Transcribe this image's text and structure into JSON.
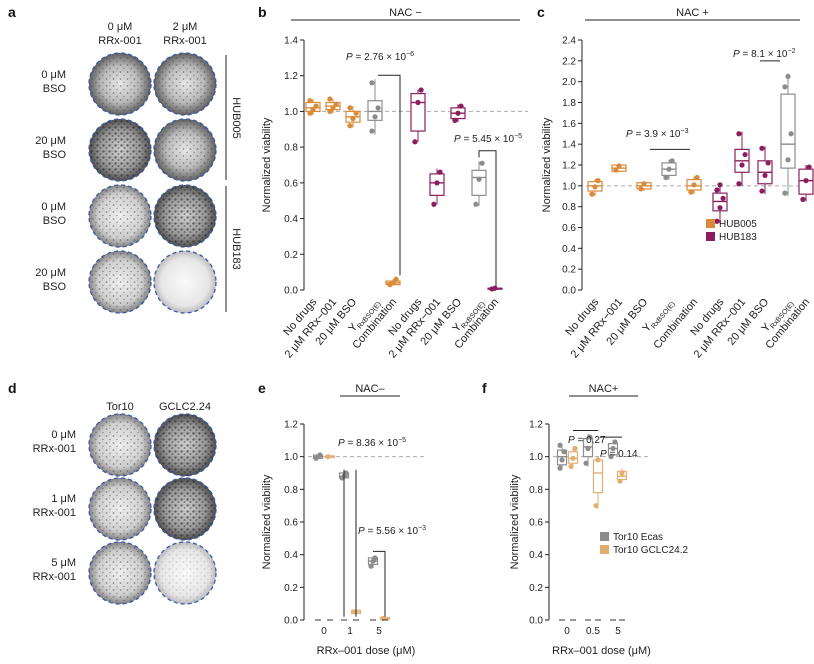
{
  "colors": {
    "hub005": "#d98a3a",
    "hub183": "#8b1e5e",
    "grey": "#8c8c8c",
    "tan": "#e3b07a",
    "tor10ecas": "#8c8c8c",
    "tor10gclc": "#e3ad72"
  },
  "panel_labels": {
    "a": "a",
    "b": "b",
    "c": "c",
    "d": "d",
    "e": "e",
    "f": "f"
  },
  "panel_a": {
    "col_headers": [
      {
        "line1": "0 μM",
        "line2": "RRx-001"
      },
      {
        "line1": "2 μM",
        "line2": "RRx-001"
      }
    ],
    "row_labels": [
      {
        "line1": "0 μM",
        "line2": "BSO"
      },
      {
        "line1": "20 μM",
        "line2": "BSO"
      },
      {
        "line1": "0 μM",
        "line2": "BSO"
      },
      {
        "line1": "20 μM",
        "line2": "BSO"
      }
    ],
    "groups": [
      "HUB005",
      "HUB183"
    ]
  },
  "panel_d": {
    "col_headers": [
      "Tor10",
      "GCLC2.24"
    ],
    "row_labels": [
      {
        "line1": "0 μM",
        "line2": "RRx-001"
      },
      {
        "line1": "1 μM",
        "line2": "RRx-001"
      },
      {
        "line1": "5 μM",
        "line2": "RRx-001"
      }
    ]
  },
  "chart_data": [
    {
      "panel": "b",
      "type": "box",
      "header": "NAC −",
      "ylabel": "Normalized viability",
      "ylim": [
        0,
        1.4
      ],
      "yticks": [
        "0.0",
        "0.2",
        "0.4",
        "0.6",
        "0.8",
        "1.0",
        "1.2",
        "1.4"
      ],
      "categories": [
        "No drugs",
        "2 μM RRx−001",
        "20 μM BSO",
        "Y",
        "Combination",
        "No drugs",
        "2 μM RRx−001",
        "20 μM BSO",
        "Y",
        "Combination"
      ],
      "subscript": "RxBSO(E)",
      "reference_line": 1.0,
      "annotations": [
        "P = 2.76 × 10",
        "−6",
        "P = 5.45 × 10",
        "−5"
      ],
      "boxes": [
        {
          "q1": 1.0,
          "med": 1.02,
          "q3": 1.05,
          "lo": 0.98,
          "hi": 1.07,
          "pts": [
            0.99,
            1.01,
            1.03,
            1.06
          ],
          "color": "#d98a3a"
        },
        {
          "q1": 1.01,
          "med": 1.03,
          "q3": 1.05,
          "lo": 0.99,
          "hi": 1.07,
          "pts": [
            1.0,
            1.02,
            1.04,
            1.07
          ],
          "color": "#d98a3a"
        },
        {
          "q1": 0.94,
          "med": 0.97,
          "q3": 1.0,
          "lo": 0.91,
          "hi": 1.03,
          "pts": [
            0.92,
            0.96,
            0.99,
            1.02
          ],
          "color": "#d98a3a"
        },
        {
          "q1": 0.95,
          "med": 1.0,
          "q3": 1.06,
          "lo": 0.87,
          "hi": 1.18,
          "pts": [
            0.89,
            0.97,
            1.02,
            1.16
          ],
          "color": "#8c8c8c"
        },
        {
          "q1": 0.03,
          "med": 0.04,
          "q3": 0.05,
          "lo": 0.03,
          "hi": 0.06,
          "pts": [
            0.03,
            0.04,
            0.06
          ],
          "color": "#d98a3a"
        },
        {
          "q1": 0.89,
          "med": 1.05,
          "q3": 1.1,
          "lo": 0.83,
          "hi": 1.12,
          "pts": [
            0.83,
            1.05,
            1.12
          ],
          "color": "#8b1e5e"
        },
        {
          "q1": 0.53,
          "med": 0.6,
          "q3": 0.65,
          "lo": 0.48,
          "hi": 0.68,
          "pts": [
            0.48,
            0.6,
            0.66
          ],
          "color": "#8b1e5e"
        },
        {
          "q1": 0.96,
          "med": 0.99,
          "q3": 1.02,
          "lo": 0.94,
          "hi": 1.04,
          "pts": [
            0.95,
            0.99,
            1.03
          ],
          "color": "#8b1e5e"
        },
        {
          "q1": 0.53,
          "med": 0.63,
          "q3": 0.67,
          "lo": 0.47,
          "hi": 0.72,
          "pts": [
            0.48,
            0.62,
            0.71
          ],
          "color": "#8c8c8c"
        },
        {
          "q1": 0.005,
          "med": 0.008,
          "q3": 0.01,
          "lo": 0.004,
          "hi": 0.012,
          "pts": [
            0.006,
            0.01
          ],
          "color": "#8b1e5e"
        }
      ]
    },
    {
      "panel": "c",
      "type": "box",
      "header": "NAC +",
      "ylabel": "Normalized viability",
      "ylim": [
        0,
        2.4
      ],
      "yticks": [
        "0.0",
        "0.2",
        "0.4",
        "0.6",
        "0.8",
        "1.0",
        "1.2",
        "1.4",
        "1.6",
        "1.8",
        "2.0",
        "2.2",
        "2.4"
      ],
      "categories": [
        "No drugs",
        "2 μM RRx−001",
        "20 μM BSO",
        "Y",
        "Combination",
        "No drugs",
        "2 μM RRx−001",
        "20 μM BSO",
        "Y",
        "Combination"
      ],
      "subscript": "RxBSO(E)",
      "reference_line": 1.0,
      "annotations": [
        "P = 3.9 × 10",
        "−3",
        "P = 8.1 × 10",
        "−2"
      ],
      "legend": [
        "HUB005",
        "HUB183"
      ],
      "boxes": [
        {
          "q1": 0.95,
          "med": 1.0,
          "q3": 1.04,
          "lo": 0.9,
          "hi": 1.07,
          "pts": [
            0.92,
            0.99,
            1.05
          ],
          "color": "#d98a3a"
        },
        {
          "q1": 1.14,
          "med": 1.17,
          "q3": 1.2,
          "lo": 1.13,
          "hi": 1.22,
          "pts": [
            1.15,
            1.19
          ],
          "color": "#d98a3a"
        },
        {
          "q1": 0.97,
          "med": 1.0,
          "q3": 1.03,
          "lo": 0.95,
          "hi": 1.04,
          "pts": [
            0.97,
            1.02
          ],
          "color": "#d98a3a"
        },
        {
          "q1": 1.1,
          "med": 1.16,
          "q3": 1.22,
          "lo": 1.06,
          "hi": 1.25,
          "pts": [
            1.08,
            1.16,
            1.24
          ],
          "color": "#8c8c8c"
        },
        {
          "q1": 0.96,
          "med": 1.0,
          "q3": 1.06,
          "lo": 0.92,
          "hi": 1.09,
          "pts": [
            0.94,
            1.01,
            1.08
          ],
          "color": "#d98a3a"
        },
        {
          "q1": 0.76,
          "med": 0.85,
          "q3": 0.93,
          "lo": 0.64,
          "hi": 1.02,
          "pts": [
            0.66,
            0.79,
            0.88,
            0.96,
            1.01
          ],
          "color": "#8b1e5e"
        },
        {
          "q1": 1.13,
          "med": 1.24,
          "q3": 1.35,
          "lo": 1.0,
          "hi": 1.52,
          "pts": [
            1.02,
            1.2,
            1.3,
            1.5
          ],
          "color": "#8b1e5e"
        },
        {
          "q1": 1.02,
          "med": 1.13,
          "q3": 1.24,
          "lo": 0.92,
          "hi": 1.38,
          "pts": [
            0.95,
            1.1,
            1.22,
            1.36
          ],
          "color": "#8b1e5e"
        },
        {
          "q1": 1.17,
          "med": 1.4,
          "q3": 1.88,
          "lo": 0.9,
          "hi": 2.08,
          "pts": [
            0.93,
            1.25,
            1.5,
            1.95,
            2.05
          ],
          "color": "#8c8c8c"
        },
        {
          "q1": 0.92,
          "med": 1.05,
          "q3": 1.16,
          "lo": 0.85,
          "hi": 1.2,
          "pts": [
            0.87,
            1.05,
            1.18
          ],
          "color": "#8b1e5e"
        }
      ]
    },
    {
      "panel": "e",
      "type": "box",
      "header": "NAC–",
      "xlabel": "RRx–001 dose (μM)",
      "ylabel": "Normalized viability",
      "ylim": [
        0,
        1.2
      ],
      "yticks": [
        "0.0",
        "0.2",
        "0.4",
        "0.6",
        "0.8",
        "1.0",
        "1.2"
      ],
      "x_ticks": [
        "0",
        "1",
        "5"
      ],
      "reference_line": 1.0,
      "annotations": [
        "P = 8.36 × 10",
        "−5",
        "P = 5.56 × 10",
        "−3"
      ],
      "boxes": [
        {
          "q1": 0.99,
          "med": 1.0,
          "q3": 1.01,
          "lo": 0.98,
          "hi": 1.02,
          "pts": [
            0.99,
            1.0,
            1.01
          ],
          "color": "#8c8c8c"
        },
        {
          "q1": 0.995,
          "med": 1.0,
          "q3": 1.005,
          "lo": 0.99,
          "hi": 1.01,
          "pts": [
            1.0
          ],
          "color": "#e3b07a"
        },
        {
          "q1": 0.87,
          "med": 0.88,
          "q3": 0.9,
          "lo": 0.86,
          "hi": 0.91,
          "pts": [
            0.87,
            0.88,
            0.9
          ],
          "color": "#8c8c8c"
        },
        {
          "q1": 0.04,
          "med": 0.05,
          "q3": 0.06,
          "lo": 0.04,
          "hi": 0.06,
          "pts": [
            0.05
          ],
          "color": "#e3b07a"
        },
        {
          "q1": 0.34,
          "med": 0.36,
          "q3": 0.38,
          "lo": 0.32,
          "hi": 0.39,
          "pts": [
            0.33,
            0.36,
            0.38
          ],
          "color": "#8c8c8c"
        },
        {
          "q1": 0.005,
          "med": 0.01,
          "q3": 0.015,
          "lo": 0.003,
          "hi": 0.02,
          "pts": [
            0.01
          ],
          "color": "#e3b07a"
        }
      ]
    },
    {
      "panel": "f",
      "type": "box",
      "header": "NAC+",
      "xlabel": "RRx–001 dose (μM)",
      "ylabel": "Normalized viability",
      "ylim": [
        0,
        1.2
      ],
      "yticks": [
        "0.0",
        "0.2",
        "0.4",
        "0.6",
        "0.8",
        "1.0",
        "1.2"
      ],
      "x_ticks": [
        "0",
        "0.5",
        "5"
      ],
      "reference_line": 1.0,
      "annotations": [
        "P = 0.27",
        "P = 0.14"
      ],
      "legend": [
        "Tor10 Ecas",
        "Tor10 GCLC24.2"
      ],
      "boxes": [
        {
          "q1": 0.95,
          "med": 1.0,
          "q3": 1.04,
          "lo": 0.92,
          "hi": 1.08,
          "pts": [
            0.93,
            0.98,
            1.03,
            1.07
          ],
          "color": "#8c8c8c"
        },
        {
          "q1": 0.96,
          "med": 0.99,
          "q3": 1.03,
          "lo": 0.93,
          "hi": 1.06,
          "pts": [
            0.94,
            0.99,
            1.05
          ],
          "color": "#e3ad72"
        },
        {
          "q1": 1.0,
          "med": 1.06,
          "q3": 1.11,
          "lo": 0.94,
          "hi": 1.14,
          "pts": [
            0.96,
            1.05,
            1.12
          ],
          "color": "#8c8c8c"
        },
        {
          "q1": 0.78,
          "med": 0.9,
          "q3": 0.98,
          "lo": 0.68,
          "hi": 1.0,
          "pts": [
            0.7,
            0.98
          ],
          "color": "#e3ad72"
        },
        {
          "q1": 1.01,
          "med": 1.05,
          "q3": 1.08,
          "lo": 0.99,
          "hi": 1.1,
          "pts": [
            1.0,
            1.05,
            1.09
          ],
          "color": "#8c8c8c"
        },
        {
          "q1": 0.86,
          "med": 0.88,
          "q3": 0.91,
          "lo": 0.84,
          "hi": 0.93,
          "pts": [
            0.85,
            0.9
          ],
          "color": "#e3ad72"
        }
      ]
    }
  ]
}
